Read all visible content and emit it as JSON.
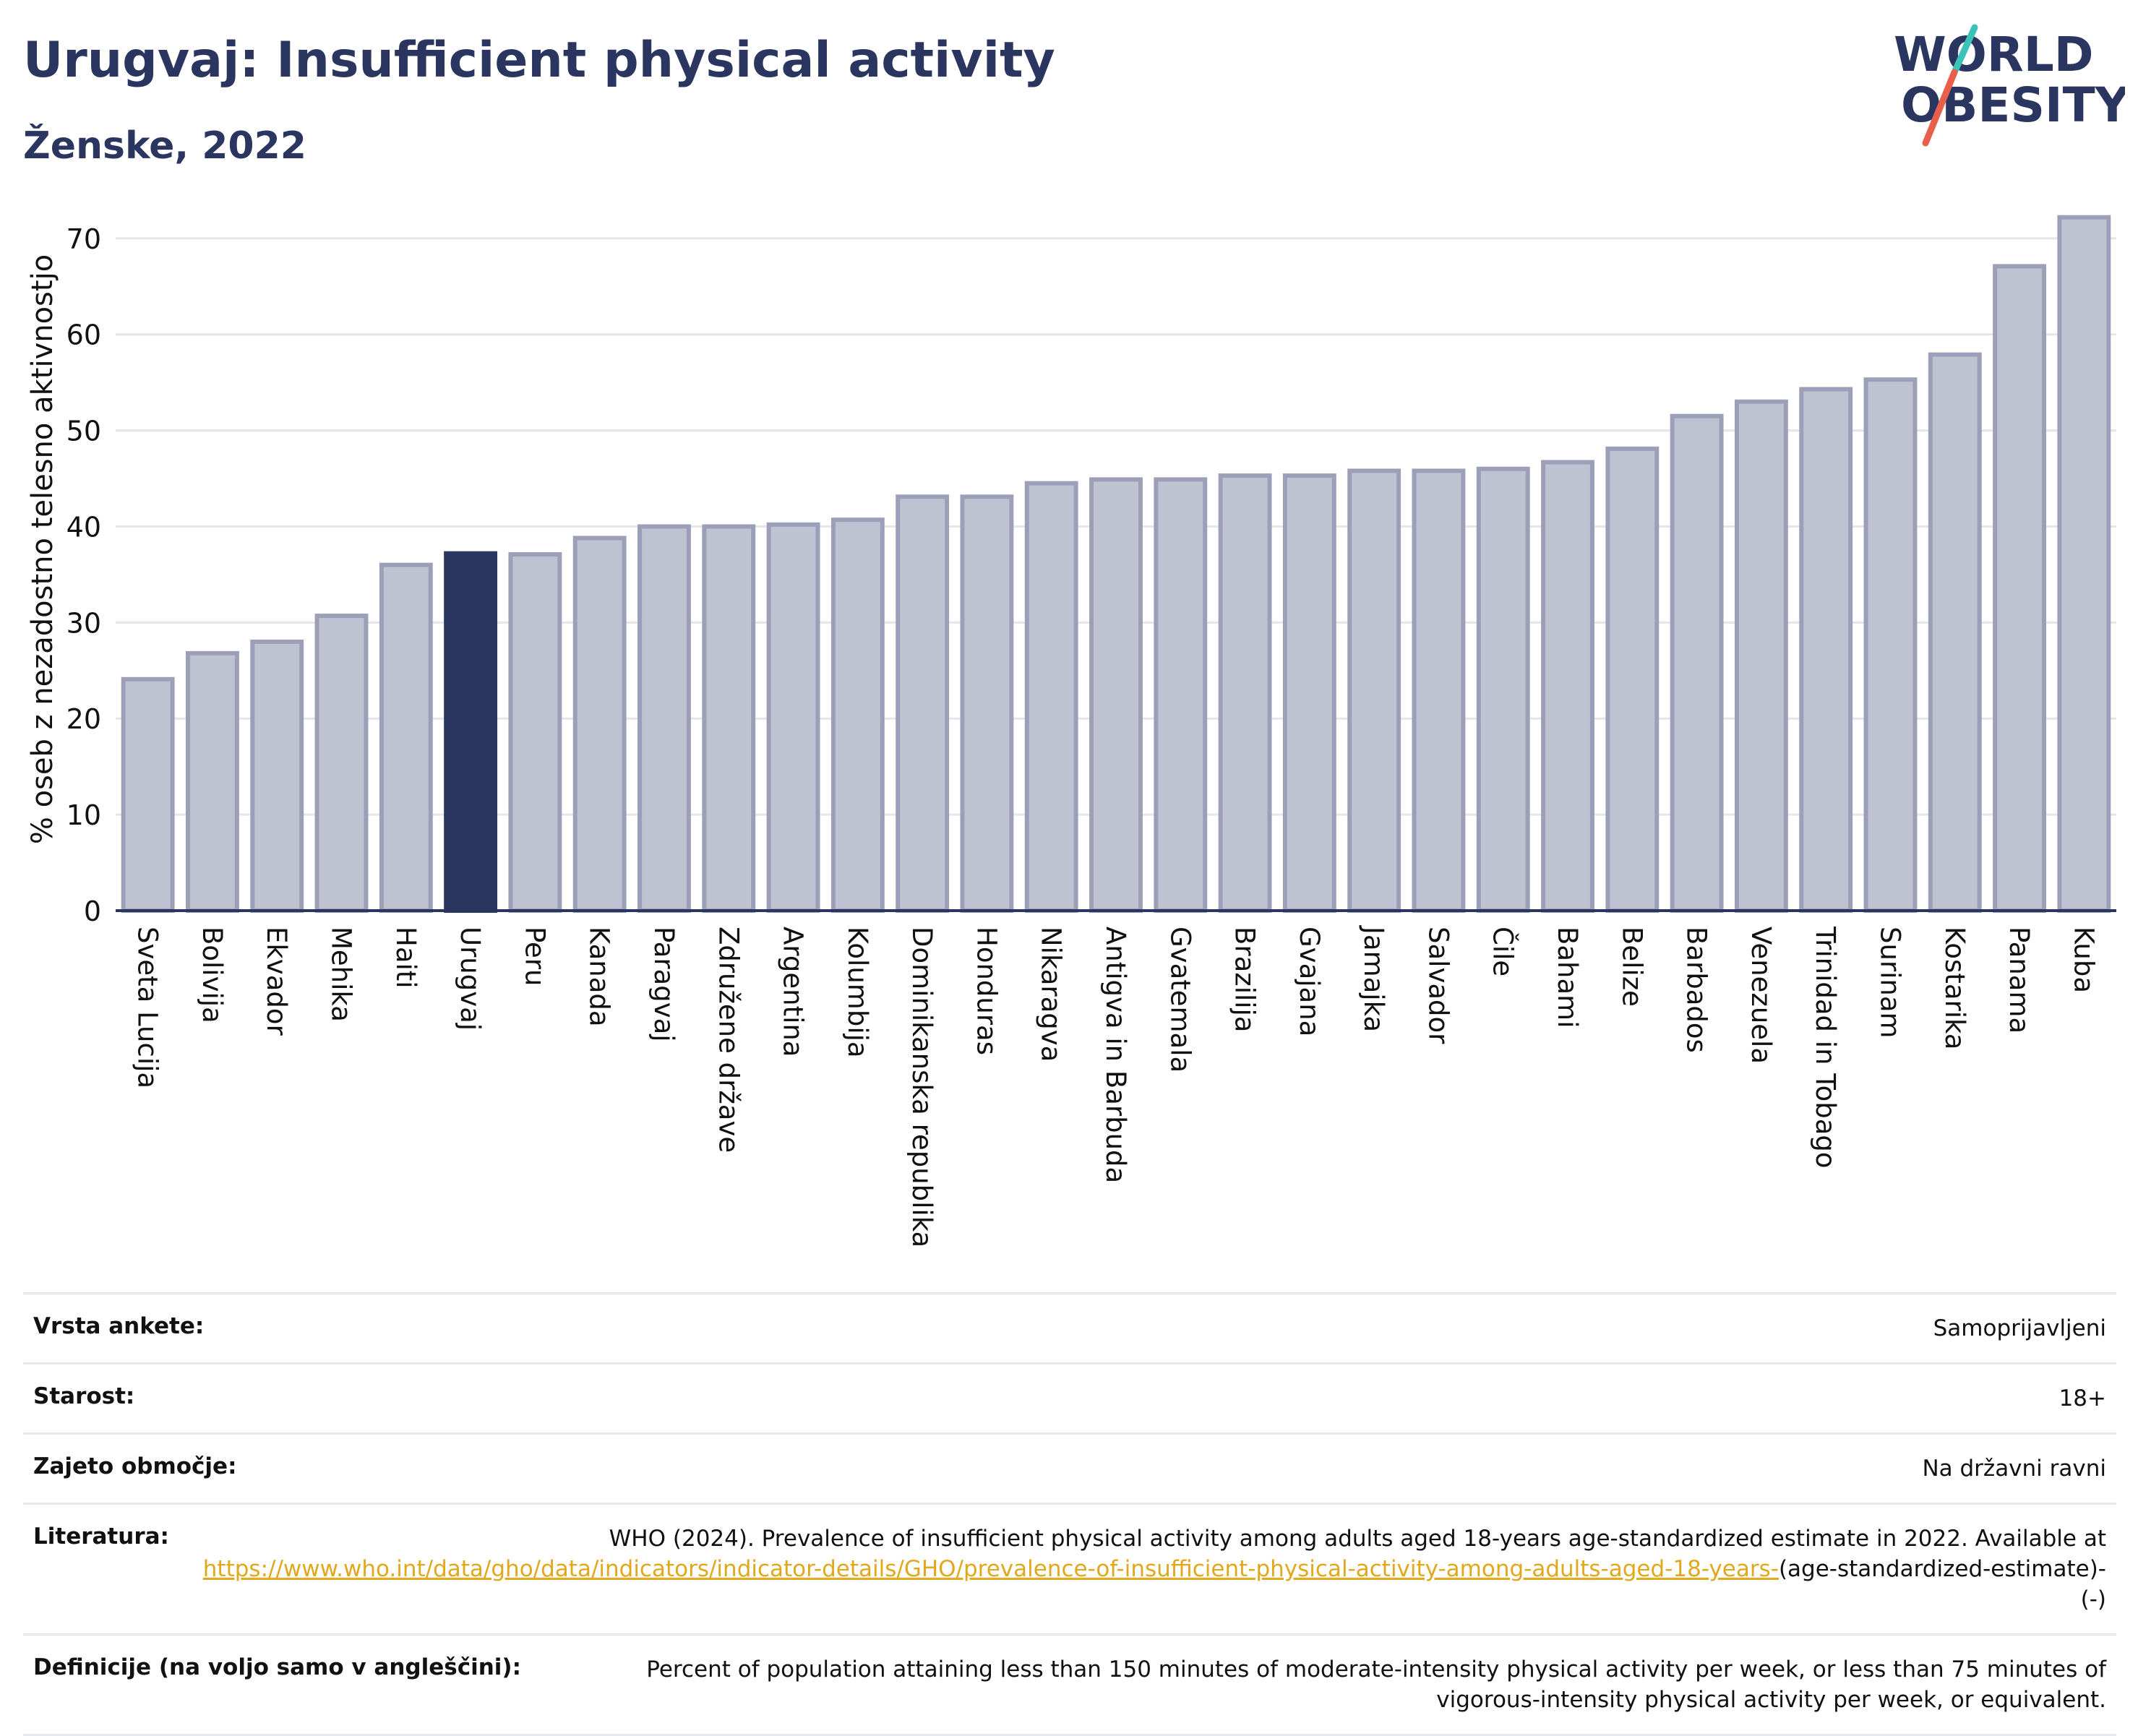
{
  "header": {
    "title": "Urugvaj: Insufficient physical activity",
    "subtitle": "Ženske, 2022"
  },
  "logo": {
    "line1": "WORLD",
    "line2": "OBESITY",
    "colors": {
      "text": "#2a3560",
      "slash_top": "#3cc3b8",
      "slash_bottom": "#e8604c"
    }
  },
  "chart_data": {
    "type": "bar",
    "ylabel": "% oseb z nezadostno telesno aktivnostjo",
    "xlabel": "",
    "ylim": [
      0,
      73
    ],
    "yticks": [
      0,
      10,
      20,
      30,
      40,
      50,
      60,
      70
    ],
    "grid": true,
    "highlight": "Urugvaj",
    "colors": {
      "bar": "#bfc2d0",
      "bar_edge": "#9ba0b8",
      "highlight": "#2a3560",
      "grid": "#e4e6ec",
      "axis": "#2a3560"
    },
    "categories": [
      "Sveta Lucija",
      "Bolivija",
      "Ekvador",
      "Mehika",
      "Haiti",
      "Urugvaj",
      "Peru",
      "Kanada",
      "Paragvaj",
      "Združene države",
      "Argentina",
      "Kolumbija",
      "Dominikanska republika",
      "Honduras",
      "Nikaragva",
      "Antigva in Barbuda",
      "Gvatemala",
      "Brazilija",
      "Gvajana",
      "Jamajka",
      "Salvador",
      "Čile",
      "Bahami",
      "Belize",
      "Barbados",
      "Venezuela",
      "Trinidad in Tobago",
      "Surinam",
      "Kostarika",
      "Panama",
      "Kuba"
    ],
    "values": [
      24.1,
      26.8,
      28.0,
      30.7,
      36.0,
      37.2,
      37.1,
      38.8,
      40.0,
      40.0,
      40.2,
      40.7,
      43.1,
      43.1,
      44.5,
      44.9,
      44.9,
      45.3,
      45.3,
      45.8,
      45.8,
      46.0,
      46.7,
      48.1,
      51.5,
      53.0,
      54.3,
      55.3,
      57.9,
      67.1,
      72.2
    ]
  },
  "meta": [
    {
      "label": "Vrsta ankete:",
      "value": "Samoprijavljeni"
    },
    {
      "label": "Starost:",
      "value": "18+"
    },
    {
      "label": "Zajeto območje:",
      "value": "Na državni ravni"
    },
    {
      "label": "Literatura:",
      "value_prefix": "WHO (2024). Prevalence of insufficient physical activity among adults aged 18-years age-standardized estimate in 2022. Available at ",
      "link": "https://www.who.int/data/gho/data/indicators/indicator-details/GHO/prevalence-of-insufficient-physical-activity-among-adults-aged-18-years-",
      "value_suffix": "(age-standardized-estimate)-(-)"
    },
    {
      "label": "Definicije (na voljo samo v angleščini):",
      "value": "Percent of population attaining less than 150 minutes of moderate-intensity physical activity per week, or less than 75 minutes of vigorous-intensity physical activity per week, or equivalent."
    }
  ]
}
